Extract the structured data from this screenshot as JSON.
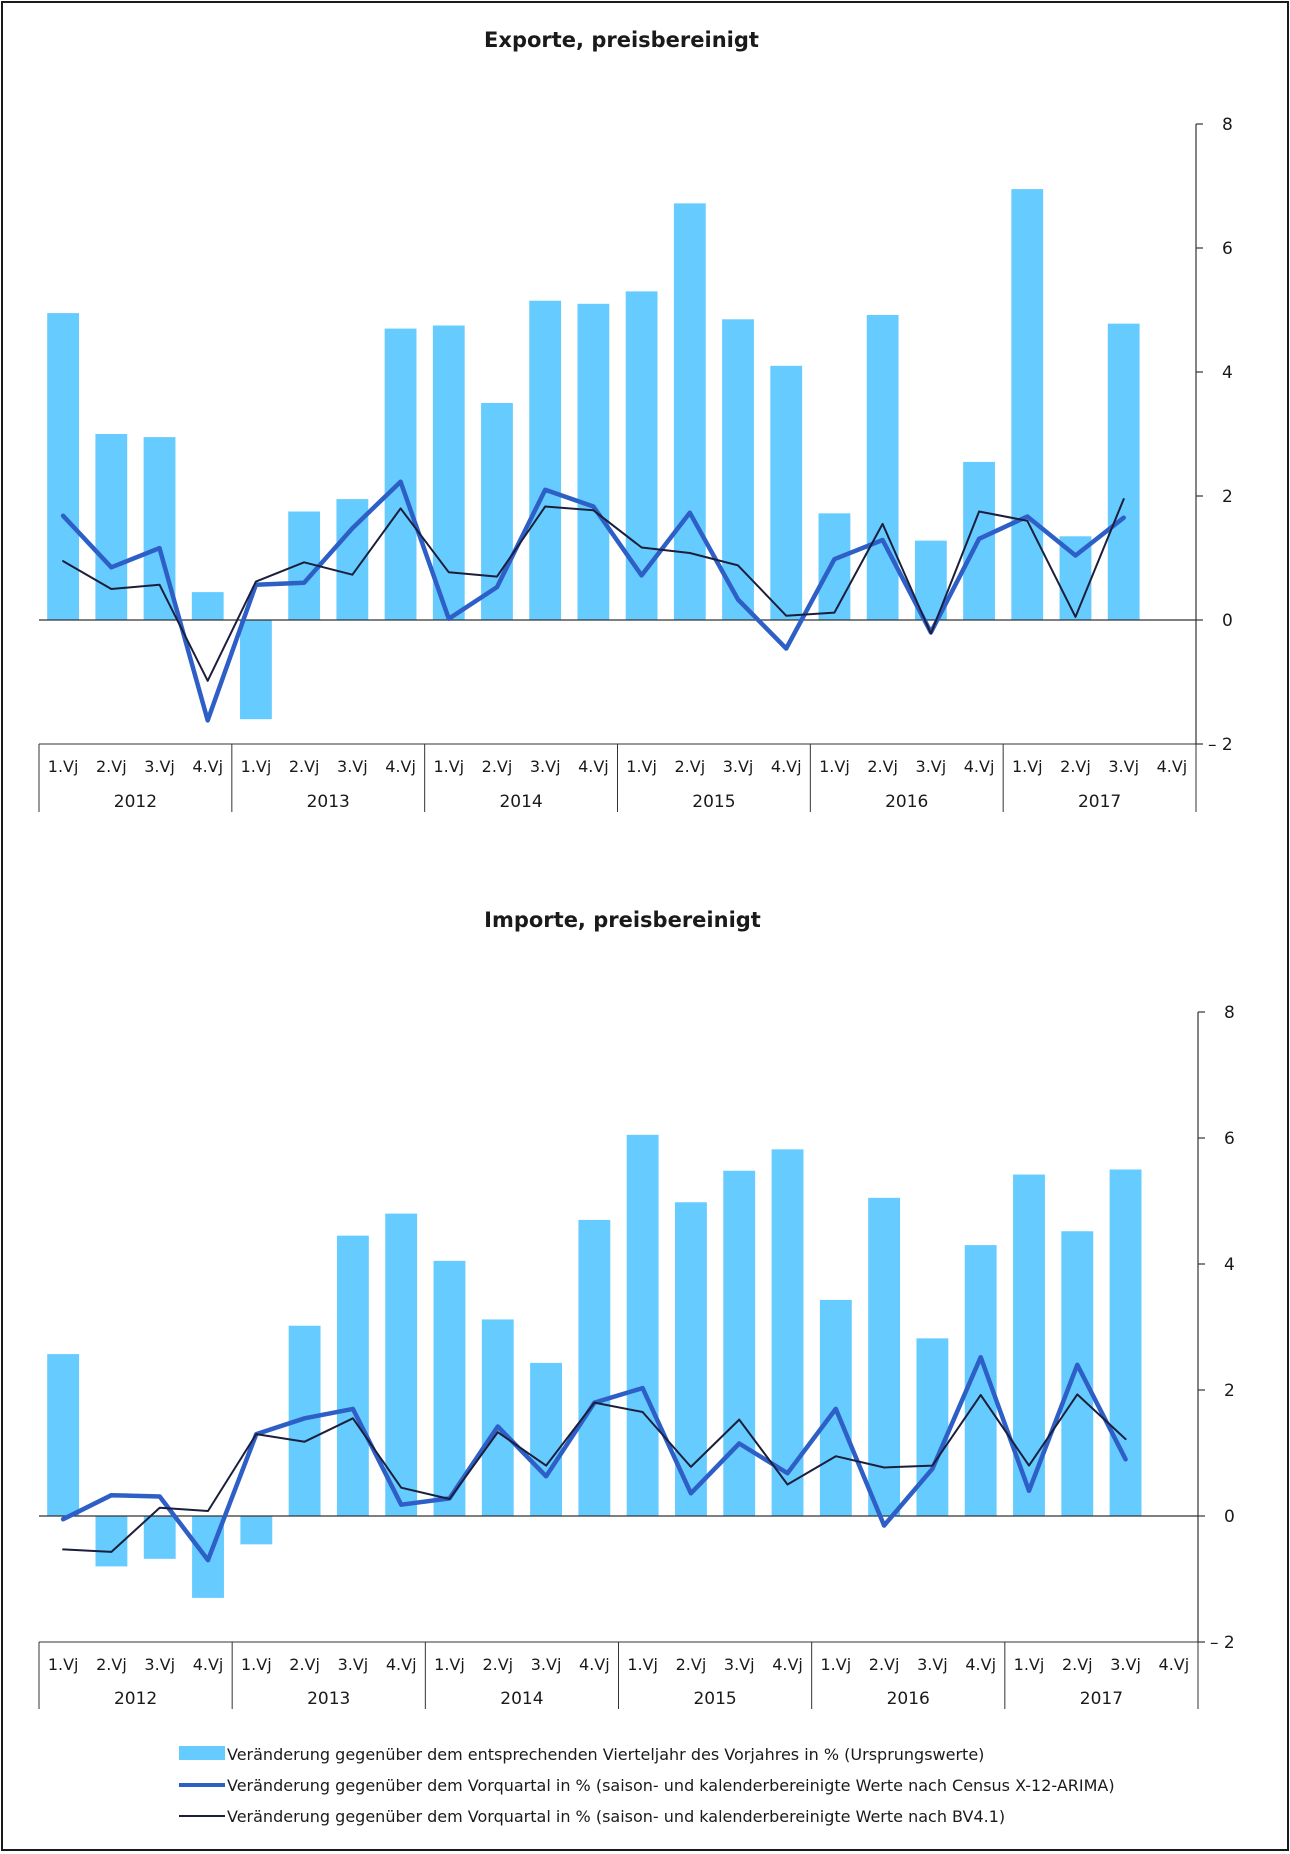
{
  "colors": {
    "bar": "#66CCFF",
    "thick_line": "#2E5FC7",
    "thin_line": "#1C1F3B",
    "axis": "#333333"
  },
  "categories": [
    "1.Vj",
    "2.Vj",
    "3.Vj",
    "4.Vj",
    "1.Vj",
    "2.Vj",
    "3.Vj",
    "4.Vj",
    "1.Vj",
    "2.Vj",
    "3.Vj",
    "4.Vj",
    "1.Vj",
    "2.Vj",
    "3.Vj",
    "4.Vj",
    "1.Vj",
    "2.Vj",
    "3.Vj",
    "4.Vj",
    "1.Vj",
    "2.Vj",
    "3.Vj",
    "4.Vj"
  ],
  "years": [
    "2012",
    "2013",
    "2014",
    "2015",
    "2016",
    "2017"
  ],
  "legend": {
    "bar": "Veränderung gegenüber dem entsprechenden Vierteljahr des Vorjahres in % (Ursprungswerte)",
    "thick": "Veränderung gegenüber dem Vorquartal in % (saison- und kalenderbereinigte Werte nach Census X-12-ARIMA)",
    "thin": "Veränderung gegenüber dem Vorquartal in % (saison- und kalenderbereinigte Werte nach BV4.1)"
  },
  "chart_data": [
    {
      "type": "bar",
      "title": "Exporte, preisbereinigt",
      "ylim": [
        -2,
        8
      ],
      "yticks": [
        "– 2",
        "0",
        "2",
        "4",
        "6",
        "8"
      ],
      "ytick_values": [
        -2,
        0,
        2,
        4,
        6,
        8
      ],
      "series": [
        {
          "name": "Veränderung gegenüber dem entsprechenden Vierteljahr des Vorjahres in % (Ursprungswerte)",
          "type": "bar",
          "values": [
            4.95,
            3.0,
            2.95,
            0.45,
            -1.6,
            1.75,
            1.95,
            4.7,
            4.75,
            3.5,
            5.15,
            5.1,
            5.3,
            6.72,
            4.85,
            4.1,
            1.72,
            4.92,
            1.28,
            2.55,
            6.95,
            1.35,
            4.78,
            null
          ]
        },
        {
          "name": "Veränderung gegenüber dem Vorquartal in % (saison- und kalenderbereinigte Werte nach Census X-12-ARIMA)",
          "type": "line",
          "values": [
            1.68,
            0.85,
            1.16,
            -1.62,
            0.57,
            0.6,
            1.48,
            2.23,
            0.02,
            0.53,
            2.1,
            1.83,
            0.72,
            1.73,
            0.33,
            -0.46,
            0.98,
            1.29,
            -0.2,
            1.31,
            1.67,
            1.04,
            1.65,
            null
          ]
        },
        {
          "name": "Veränderung gegenüber dem Vorquartal in % (saison- und kalenderbereinigte Werte nach BV4.1)",
          "type": "line",
          "values": [
            0.95,
            0.5,
            0.57,
            -0.98,
            0.62,
            0.93,
            0.73,
            1.8,
            0.77,
            0.7,
            1.83,
            1.77,
            1.17,
            1.08,
            0.88,
            0.07,
            0.12,
            1.55,
            -0.22,
            1.75,
            1.6,
            0.05,
            1.95,
            null
          ]
        }
      ]
    },
    {
      "type": "bar",
      "title": "Importe, preisbereinigt",
      "ylim": [
        -2,
        8
      ],
      "yticks": [
        "– 2",
        "0",
        "2",
        "4",
        "6",
        "8"
      ],
      "ytick_values": [
        -2,
        0,
        2,
        4,
        6,
        8
      ],
      "series": [
        {
          "name": "Veränderung gegenüber dem entsprechenden Vierteljahr des Vorjahres in % (Ursprungswerte)",
          "type": "bar",
          "values": [
            2.57,
            -0.8,
            -0.68,
            -1.3,
            -0.45,
            3.02,
            4.45,
            4.8,
            4.05,
            3.12,
            2.43,
            4.7,
            6.05,
            4.98,
            5.48,
            5.82,
            3.43,
            5.05,
            2.82,
            4.3,
            5.42,
            4.52,
            5.5,
            null
          ]
        },
        {
          "name": "Veränderung gegenüber dem Vorquartal in % (saison- und kalenderbereinigte Werte nach Census X-12-ARIMA)",
          "type": "line",
          "values": [
            -0.05,
            0.33,
            0.31,
            -0.7,
            1.3,
            1.55,
            1.7,
            0.18,
            0.28,
            1.42,
            0.63,
            1.8,
            2.03,
            0.36,
            1.15,
            0.68,
            1.7,
            -0.15,
            0.75,
            2.52,
            0.4,
            2.4,
            0.9,
            null
          ]
        },
        {
          "name": "Veränderung gegenüber dem Vorquartal in % (saison- und kalenderbereinigte Werte nach BV4.1)",
          "type": "line",
          "values": [
            -0.53,
            -0.57,
            0.13,
            0.08,
            1.3,
            1.18,
            1.55,
            0.45,
            0.27,
            1.33,
            0.8,
            1.8,
            1.65,
            0.78,
            1.53,
            0.5,
            0.95,
            0.77,
            0.8,
            1.92,
            0.8,
            1.93,
            1.22,
            null
          ]
        }
      ]
    }
  ]
}
